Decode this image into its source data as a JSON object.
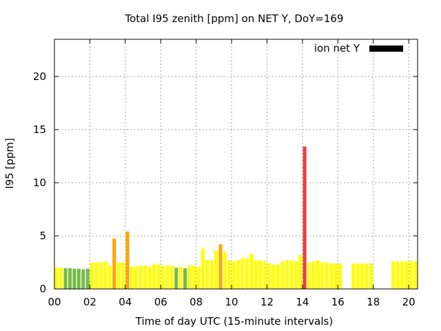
{
  "chart_data": {
    "type": "bar",
    "title": "Total I95 zenith [ppm] on NET Y, DoY=169",
    "xlabel": "Time of day UTC (15-minute intervals)",
    "ylabel": "I95 [ppm]",
    "xlim": [
      0,
      20.5
    ],
    "ylim": [
      0,
      23.5
    ],
    "xticks": [
      0,
      2,
      4,
      6,
      8,
      10,
      12,
      14,
      16,
      18,
      20
    ],
    "xtick_labels": [
      "00",
      "02",
      "04",
      "06",
      "08",
      "10",
      "12",
      "14",
      "16",
      "18",
      "20"
    ],
    "yticks": [
      0,
      5,
      10,
      15,
      20
    ],
    "ytick_labels": [
      "0",
      "5",
      "10",
      "15",
      "20"
    ],
    "grid": true,
    "legend": {
      "label": "ion net Y",
      "color": "#000000",
      "placement": "top-right"
    },
    "bar_width_hours": 0.2,
    "colors": {
      "green": "#77bb44",
      "yellow": "#ffff00",
      "orange": "#ffa500",
      "red": "#e8413c"
    },
    "bars": [
      {
        "x": 0.125,
        "value": 2.0,
        "color": "yellow"
      },
      {
        "x": 0.375,
        "value": 2.0,
        "color": "yellow"
      },
      {
        "x": 0.625,
        "value": 1.95,
        "color": "green"
      },
      {
        "x": 0.875,
        "value": 1.95,
        "color": "green"
      },
      {
        "x": 1.125,
        "value": 1.9,
        "color": "green"
      },
      {
        "x": 1.375,
        "value": 1.9,
        "color": "green"
      },
      {
        "x": 1.625,
        "value": 1.85,
        "color": "green"
      },
      {
        "x": 1.875,
        "value": 1.9,
        "color": "green"
      },
      {
        "x": 2.125,
        "value": 2.5,
        "color": "yellow"
      },
      {
        "x": 2.375,
        "value": 2.5,
        "color": "yellow"
      },
      {
        "x": 2.625,
        "value": 2.5,
        "color": "yellow"
      },
      {
        "x": 2.875,
        "value": 2.6,
        "color": "yellow"
      },
      {
        "x": 3.125,
        "value": 2.2,
        "color": "yellow"
      },
      {
        "x": 3.375,
        "value": 4.75,
        "color": "orange"
      },
      {
        "x": 3.625,
        "value": 2.5,
        "color": "yellow"
      },
      {
        "x": 3.875,
        "value": 2.5,
        "color": "yellow"
      },
      {
        "x": 4.125,
        "value": 5.4,
        "color": "orange"
      },
      {
        "x": 4.375,
        "value": 2.1,
        "color": "yellow"
      },
      {
        "x": 4.625,
        "value": 2.1,
        "color": "yellow"
      },
      {
        "x": 4.875,
        "value": 2.2,
        "color": "yellow"
      },
      {
        "x": 5.125,
        "value": 2.2,
        "color": "yellow"
      },
      {
        "x": 5.375,
        "value": 2.1,
        "color": "yellow"
      },
      {
        "x": 5.625,
        "value": 2.3,
        "color": "yellow"
      },
      {
        "x": 5.875,
        "value": 2.3,
        "color": "yellow"
      },
      {
        "x": 6.125,
        "value": 2.2,
        "color": "yellow"
      },
      {
        "x": 6.375,
        "value": 2.2,
        "color": "yellow"
      },
      {
        "x": 6.625,
        "value": 2.2,
        "color": "yellow"
      },
      {
        "x": 6.875,
        "value": 2.0,
        "color": "green"
      },
      {
        "x": 7.125,
        "value": 2.1,
        "color": "yellow"
      },
      {
        "x": 7.375,
        "value": 1.95,
        "color": "green"
      },
      {
        "x": 7.625,
        "value": 2.2,
        "color": "yellow"
      },
      {
        "x": 7.875,
        "value": 2.2,
        "color": "yellow"
      },
      {
        "x": 8.125,
        "value": 2.1,
        "color": "yellow"
      },
      {
        "x": 8.375,
        "value": 3.8,
        "color": "yellow"
      },
      {
        "x": 8.625,
        "value": 2.7,
        "color": "yellow"
      },
      {
        "x": 8.875,
        "value": 2.7,
        "color": "yellow"
      },
      {
        "x": 9.125,
        "value": 3.6,
        "color": "yellow"
      },
      {
        "x": 9.375,
        "value": 4.2,
        "color": "orange"
      },
      {
        "x": 9.625,
        "value": 3.5,
        "color": "yellow"
      },
      {
        "x": 9.875,
        "value": 2.7,
        "color": "yellow"
      },
      {
        "x": 10.125,
        "value": 2.6,
        "color": "yellow"
      },
      {
        "x": 10.375,
        "value": 2.7,
        "color": "yellow"
      },
      {
        "x": 10.625,
        "value": 2.9,
        "color": "yellow"
      },
      {
        "x": 10.875,
        "value": 2.9,
        "color": "yellow"
      },
      {
        "x": 11.125,
        "value": 3.3,
        "color": "yellow"
      },
      {
        "x": 11.375,
        "value": 2.7,
        "color": "yellow"
      },
      {
        "x": 11.625,
        "value": 2.7,
        "color": "yellow"
      },
      {
        "x": 11.875,
        "value": 2.6,
        "color": "yellow"
      },
      {
        "x": 12.125,
        "value": 2.4,
        "color": "yellow"
      },
      {
        "x": 12.375,
        "value": 2.3,
        "color": "yellow"
      },
      {
        "x": 12.625,
        "value": 2.3,
        "color": "yellow"
      },
      {
        "x": 12.875,
        "value": 2.6,
        "color": "yellow"
      },
      {
        "x": 13.125,
        "value": 2.7,
        "color": "yellow"
      },
      {
        "x": 13.375,
        "value": 2.7,
        "color": "yellow"
      },
      {
        "x": 13.625,
        "value": 2.6,
        "color": "yellow"
      },
      {
        "x": 13.875,
        "value": 3.2,
        "color": "yellow"
      },
      {
        "x": 14.125,
        "value": 13.4,
        "color": "red"
      },
      {
        "x": 14.375,
        "value": 2.5,
        "color": "yellow"
      },
      {
        "x": 14.625,
        "value": 2.6,
        "color": "yellow"
      },
      {
        "x": 14.875,
        "value": 2.7,
        "color": "yellow"
      },
      {
        "x": 15.125,
        "value": 2.5,
        "color": "yellow"
      },
      {
        "x": 15.375,
        "value": 2.5,
        "color": "yellow"
      },
      {
        "x": 15.625,
        "value": 2.4,
        "color": "yellow"
      },
      {
        "x": 15.875,
        "value": 2.4,
        "color": "yellow"
      },
      {
        "x": 16.125,
        "value": 2.4,
        "color": "yellow"
      },
      {
        "x": 16.875,
        "value": 2.4,
        "color": "yellow"
      },
      {
        "x": 17.125,
        "value": 2.4,
        "color": "yellow"
      },
      {
        "x": 17.375,
        "value": 2.4,
        "color": "yellow"
      },
      {
        "x": 17.625,
        "value": 2.4,
        "color": "yellow"
      },
      {
        "x": 17.875,
        "value": 2.4,
        "color": "yellow"
      },
      {
        "x": 19.125,
        "value": 2.6,
        "color": "yellow"
      },
      {
        "x": 19.375,
        "value": 2.6,
        "color": "yellow"
      },
      {
        "x": 19.625,
        "value": 2.6,
        "color": "yellow"
      },
      {
        "x": 19.875,
        "value": 2.6,
        "color": "yellow"
      },
      {
        "x": 20.125,
        "value": 2.6,
        "color": "yellow"
      },
      {
        "x": 20.375,
        "value": 2.6,
        "color": "yellow"
      }
    ]
  }
}
